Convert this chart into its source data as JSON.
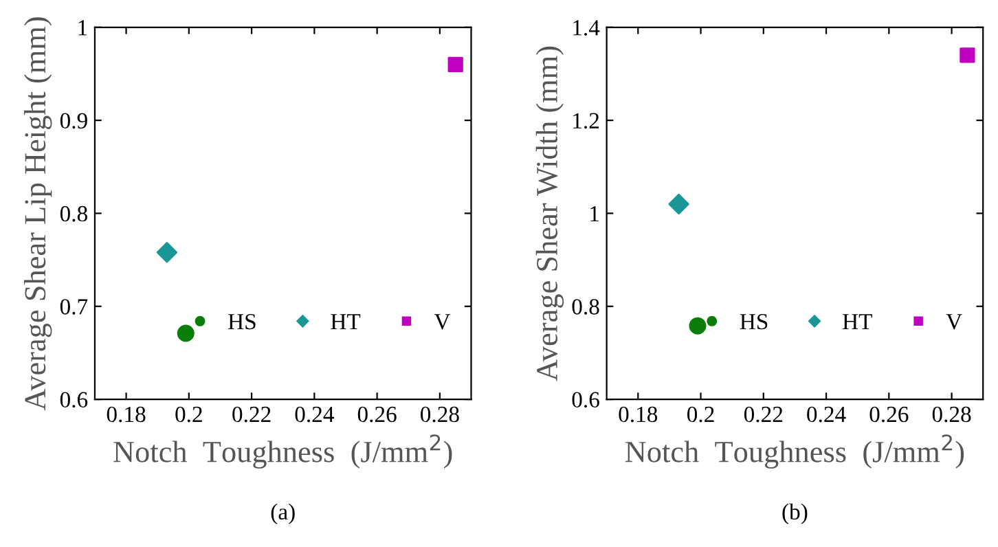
{
  "chart_data": [
    {
      "type": "scatter",
      "xlabel": "Notch  Toughness  (J/mm$^{2}$)",
      "ylabel": "Average Shear Lip Height (mm)",
      "annotations": [
        "(a)"
      ],
      "xlim": [
        0.17,
        0.29
      ],
      "xticks": [
        0.18,
        {
          "value": 0.2,
          "label": "0.2"
        },
        0.22,
        0.24,
        0.26,
        0.28
      ],
      "ylim": [
        0.6,
        1.0
      ],
      "yticks": [
        0.6,
        0.7,
        0.8,
        0.9,
        {
          "value": 1.0,
          "label": "1"
        }
      ],
      "grid": false,
      "legend": "bottom right",
      "series": [
        {
          "name": "HS",
          "color": "#0a7d0a",
          "marker": "circle",
          "x": [
            0.199
          ],
          "values": [
            0.671
          ]
        },
        {
          "name": "HT",
          "color": "#1a9696",
          "marker": "diamond",
          "x": [
            0.193
          ],
          "values": [
            0.758
          ]
        },
        {
          "name": "V",
          "color": "#c000c0",
          "marker": "square",
          "x": [
            0.285
          ],
          "values": [
            0.96
          ]
        }
      ]
    },
    {
      "type": "scatter",
      "xlabel": "Notch  Toughness  (J/mm$^{2}$)",
      "ylabel": "Average Shear Width (mm)",
      "annotations": [
        "(b)"
      ],
      "xlim": [
        0.17,
        0.29
      ],
      "xticks": [
        0.18,
        {
          "value": 0.2,
          "label": "0.2"
        },
        0.22,
        0.24,
        0.26,
        0.28
      ],
      "ylim": [
        0.6,
        1.4
      ],
      "yticks": [
        0.6,
        0.8,
        {
          "value": 1.0,
          "label": "1"
        },
        1.2,
        1.4
      ],
      "grid": false,
      "legend": "bottom right",
      "series": [
        {
          "name": "HS",
          "color": "#0a7d0a",
          "marker": "circle",
          "x": [
            0.199
          ],
          "values": [
            0.758
          ]
        },
        {
          "name": "HT",
          "color": "#1a9696",
          "marker": "diamond",
          "x": [
            0.193
          ],
          "values": [
            1.02
          ]
        },
        {
          "name": "V",
          "color": "#c000c0",
          "marker": "square",
          "x": [
            0.285
          ],
          "values": [
            1.34
          ]
        }
      ]
    }
  ]
}
